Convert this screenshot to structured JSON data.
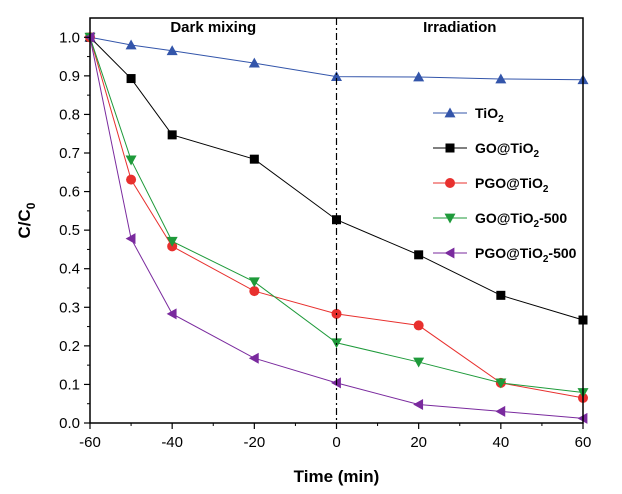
{
  "chart_data": {
    "type": "line",
    "xlabel": "Time (min)",
    "ylabel_main": "C/C",
    "ylabel_sub": "0",
    "xlim": [
      -60,
      60
    ],
    "ylim": [
      0,
      1.05
    ],
    "x_ticks": [
      "-60",
      "-40",
      "-20",
      "0",
      "20",
      "40",
      "60"
    ],
    "y_ticks": [
      "0.0",
      "0.1",
      "0.2",
      "0.3",
      "0.4",
      "0.5",
      "0.6",
      "0.7",
      "0.8",
      "0.9",
      "1.0"
    ],
    "x_tick_values": [
      -60,
      -40,
      -20,
      0,
      20,
      40,
      60
    ],
    "y_tick_values": [
      0,
      0.1,
      0.2,
      0.3,
      0.4,
      0.5,
      0.6,
      0.7,
      0.8,
      0.9,
      1.0
    ],
    "divider_x": 0,
    "annotations": {
      "left": "Dark mixing",
      "right": "Irradiation"
    },
    "legend_position": "right",
    "series": [
      {
        "label_main": "TiO",
        "label_sub": "2",
        "label_tail": "",
        "marker": "triangle-up",
        "color": "#3355aa",
        "x": [
          -60,
          -50,
          -40,
          -20,
          0,
          20,
          40,
          60
        ],
        "values": [
          1.0,
          0.98,
          0.965,
          0.933,
          0.898,
          0.897,
          0.892,
          0.89
        ]
      },
      {
        "label_main": "GO@TiO",
        "label_sub": "2",
        "label_tail": "",
        "marker": "square",
        "color": "#000000",
        "x": [
          -60,
          -50,
          -40,
          -20,
          0,
          20,
          40,
          60
        ],
        "values": [
          1.0,
          0.893,
          0.747,
          0.684,
          0.527,
          0.436,
          0.331,
          0.267
        ]
      },
      {
        "label_main": "PGO@TiO",
        "label_sub": "2",
        "label_tail": "",
        "marker": "circle",
        "color": "#e8302e",
        "x": [
          -60,
          -50,
          -40,
          -20,
          0,
          20,
          40,
          60
        ],
        "values": [
          1.0,
          0.631,
          0.458,
          0.342,
          0.283,
          0.253,
          0.104,
          0.065
        ]
      },
      {
        "label_main": "GO@TiO",
        "label_sub": "2",
        "label_tail": "-500",
        "marker": "triangle-down",
        "color": "#1e9a3a",
        "x": [
          -60,
          -50,
          -40,
          -20,
          0,
          20,
          40,
          60
        ],
        "values": [
          1.0,
          0.682,
          0.471,
          0.366,
          0.208,
          0.158,
          0.104,
          0.079
        ]
      },
      {
        "label_main": "PGO@TiO",
        "label_sub": "2",
        "label_tail": "-500",
        "marker": "triangle-left",
        "color": "#7a2a9e",
        "x": [
          -60,
          -50,
          -40,
          -20,
          0,
          20,
          40,
          60
        ],
        "values": [
          1.0,
          0.478,
          0.283,
          0.168,
          0.104,
          0.048,
          0.03,
          0.012
        ]
      }
    ]
  }
}
